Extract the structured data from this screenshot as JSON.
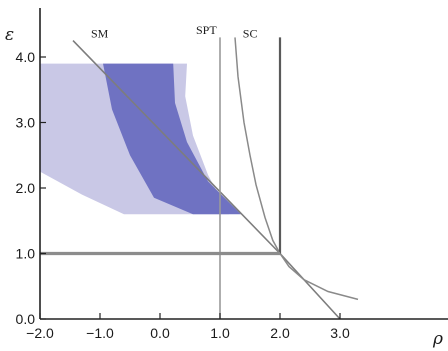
{
  "chart_data": {
    "type": "area",
    "xlabel": "ρ",
    "ylabel": "ε",
    "xlim": [
      -2.0,
      3.3
    ],
    "ylim": [
      0.0,
      4.3
    ],
    "x_ticks": [
      "−2.0",
      "−1.0",
      "0.0",
      "1.0",
      "2.0",
      "3.0"
    ],
    "x_tick_values": [
      -2.0,
      -1.0,
      0.0,
      1.0,
      2.0,
      3.0
    ],
    "y_ticks": [
      "0.0",
      "1.0",
      "2.0",
      "3.0",
      "4.0"
    ],
    "y_tick_values": [
      0.0,
      1.0,
      2.0,
      3.0,
      4.0
    ],
    "regions": [
      {
        "fill": "#c9c8e6",
        "points": [
          [
            -2.0,
            3.9
          ],
          [
            0.45,
            3.9
          ],
          [
            0.42,
            3.4
          ],
          [
            0.55,
            2.8
          ],
          [
            0.8,
            2.2
          ],
          [
            1.15,
            1.6
          ],
          [
            -0.6,
            1.6
          ],
          [
            -1.3,
            1.9
          ],
          [
            -2.0,
            2.25
          ]
        ]
      },
      {
        "fill": "#6f72c2",
        "points": [
          [
            -0.95,
            3.9
          ],
          [
            0.22,
            3.9
          ],
          [
            0.25,
            3.3
          ],
          [
            0.45,
            2.7
          ],
          [
            0.8,
            2.1
          ],
          [
            1.35,
            1.6
          ],
          [
            0.55,
            1.6
          ],
          [
            -0.1,
            1.85
          ],
          [
            -0.5,
            2.5
          ],
          [
            -0.8,
            3.2
          ]
        ]
      }
    ],
    "lines": [
      {
        "label": "SM",
        "stroke": "#7d7d7d",
        "points": [
          [
            -1.45,
            4.25
          ],
          [
            2.0,
            1.0
          ],
          [
            3.0,
            0.0
          ]
        ]
      },
      {
        "label": "SPT",
        "stroke": "#9a9a9a",
        "points": [
          [
            1.0,
            0.0
          ],
          [
            1.0,
            4.3
          ]
        ]
      },
      {
        "label": "SC",
        "stroke": "#8a8a8a",
        "points": [
          [
            1.25,
            4.3
          ],
          [
            1.3,
            3.7
          ],
          [
            1.4,
            3.0
          ],
          [
            1.5,
            2.5
          ],
          [
            1.6,
            2.05
          ],
          [
            1.75,
            1.55
          ],
          [
            1.88,
            1.2
          ],
          [
            2.0,
            1.0
          ],
          [
            2.15,
            0.8
          ],
          [
            2.4,
            0.6
          ],
          [
            2.8,
            0.42
          ],
          [
            3.3,
            0.3
          ]
        ]
      },
      {
        "label": "",
        "stroke": "#5a5a5a",
        "points": [
          [
            2.0,
            1.0
          ],
          [
            2.0,
            4.3
          ]
        ]
      },
      {
        "label": "",
        "stroke": "#8c8c8c",
        "points": [
          [
            -2.0,
            1.0
          ],
          [
            2.0,
            1.0
          ]
        ]
      }
    ],
    "grid": false
  }
}
